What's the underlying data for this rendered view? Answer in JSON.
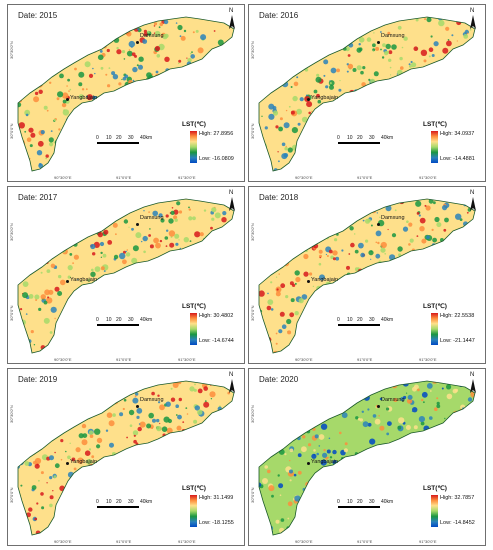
{
  "legend_title": "LST(℃)",
  "scale_labels": [
    "0",
    "10",
    "20",
    "30",
    "40km"
  ],
  "north_label": "N",
  "town_damxung": "Damxung",
  "town_yangbajain": "Yangbajain",
  "lat_labels": [
    "30°30'0\"N",
    "30°0'0\"N"
  ],
  "lon_labels": [
    "90°30'0\"E",
    "91°0'0\"E",
    "91°30'0\"E"
  ],
  "panels": [
    {
      "date": "Date: 2015",
      "high": "High: 27.8956",
      "low": "Low: -16.0809",
      "palette": "warm"
    },
    {
      "date": "Date: 2016",
      "high": "High: 34.0937",
      "low": "Low: -14.4881",
      "palette": "warm"
    },
    {
      "date": "Date: 2017",
      "high": "High: 30.4802",
      "low": "Low: -14.6744",
      "palette": "mixed"
    },
    {
      "date": "Date: 2018",
      "high": "High: 22.5538",
      "low": "Low: -21.1447",
      "palette": "mixed"
    },
    {
      "date": "Date: 2019",
      "high": "High: 31.1499",
      "low": "Low: -18.1255",
      "palette": "warm"
    },
    {
      "date": "Date: 2020",
      "high": "High: 32.7857",
      "low": "Low: -14.8452",
      "palette": "cool"
    }
  ],
  "colors": {
    "red": "#d7191c",
    "orange": "#fd8d3c",
    "yellow": "#fee08b",
    "lightgreen": "#a6d96a",
    "green": "#1a9641",
    "blue": "#2b83ba",
    "deepblue": "#0049c4"
  }
}
